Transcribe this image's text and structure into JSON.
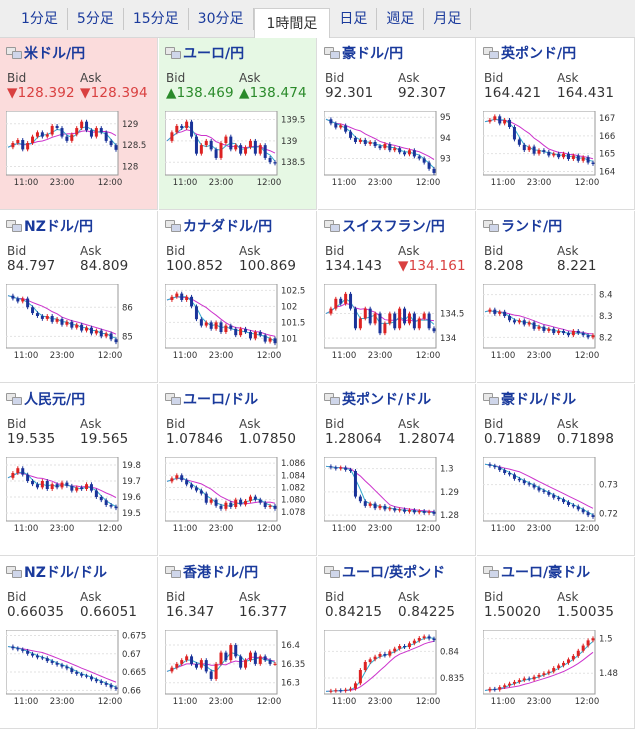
{
  "tabs": [
    "1分足",
    "5分足",
    "15分足",
    "30分足",
    "1時間足",
    "日足",
    "週足",
    "月足"
  ],
  "active_tab_index": 4,
  "labels": {
    "bid": "Bid",
    "ask": "Ask"
  },
  "colors": {
    "link": "#1a3a9c",
    "down_bg": "#fbdcdc",
    "up_bg": "#e6f8e4",
    "ma_long": "#cc33cc",
    "ma_short": "#33aacc",
    "candle_up": "#dd2222",
    "candle_down": "#1a3399"
  },
  "pairs": [
    {
      "name": "米ドル/円",
      "bid": "▼128.392",
      "ask": "▼128.394",
      "state": "down",
      "bid_color": "red",
      "ask_color": "red",
      "flags": [
        "#ffffff",
        "#ffffff"
      ],
      "chart_data": {
        "type": "line",
        "x_ticks": [
          "11:00",
          "23:00",
          "12:00"
        ],
        "y_ticks": [
          "129",
          "128.5",
          "128"
        ],
        "ylim": [
          127.8,
          129.3
        ],
        "path": [
          128.45,
          128.55,
          128.62,
          128.4,
          128.55,
          128.7,
          128.8,
          128.7,
          128.75,
          128.95,
          128.9,
          128.7,
          128.6,
          128.75,
          128.9,
          129.05,
          128.85,
          128.7,
          128.9,
          128.8,
          128.6,
          128.5,
          128.39
        ]
      }
    },
    {
      "name": "ユーロ/円",
      "bid": "▲138.469",
      "ask": "▲138.474",
      "state": "up",
      "bid_color": "green",
      "ask_color": "green",
      "flags": [
        "#ffffff",
        "#ffffff"
      ],
      "chart_data": {
        "type": "line",
        "x_ticks": [
          "11:00",
          "23:00",
          "12:00"
        ],
        "y_ticks": [
          "139.5",
          "139",
          "138.5"
        ],
        "ylim": [
          138.2,
          139.7
        ],
        "path": [
          139.0,
          139.2,
          139.35,
          139.3,
          139.45,
          139.1,
          138.7,
          138.9,
          139.0,
          138.8,
          138.6,
          138.95,
          139.1,
          138.8,
          138.9,
          138.7,
          138.85,
          139.0,
          138.7,
          138.9,
          138.6,
          138.5,
          138.47
        ]
      }
    },
    {
      "name": "豪ドル/円",
      "bid": "92.301",
      "ask": "92.307",
      "state": "normal",
      "bid_color": "normal",
      "ask_color": "normal",
      "flags": [
        "#ffffff",
        "#ffffff"
      ],
      "chart_data": {
        "type": "line",
        "x_ticks": [
          "11:00",
          "23:00",
          "12:00"
        ],
        "y_ticks": [
          "95",
          "94",
          "93"
        ],
        "ylim": [
          92.2,
          95.3
        ],
        "path": [
          94.9,
          94.7,
          94.5,
          94.6,
          94.3,
          94.0,
          93.8,
          93.9,
          93.7,
          93.8,
          93.6,
          93.5,
          93.7,
          93.4,
          93.5,
          93.3,
          93.2,
          93.4,
          93.1,
          93.0,
          92.8,
          92.5,
          92.3
        ]
      }
    },
    {
      "name": "英ポンド/円",
      "bid": "164.421",
      "ask": "164.431",
      "state": "normal",
      "bid_color": "normal",
      "ask_color": "normal",
      "flags": [
        "#ffffff",
        "#ffffff"
      ],
      "chart_data": {
        "type": "line",
        "x_ticks": [
          "11:00",
          "23:00",
          "12:00"
        ],
        "y_ticks": [
          "167",
          "166",
          "165",
          "164"
        ],
        "ylim": [
          163.8,
          167.4
        ],
        "path": [
          166.8,
          166.9,
          167.1,
          166.7,
          166.9,
          166.5,
          165.8,
          165.5,
          165.2,
          165.4,
          165.0,
          165.2,
          165.1,
          164.9,
          165.0,
          164.8,
          165.0,
          164.7,
          164.9,
          164.6,
          164.8,
          164.5,
          164.42
        ]
      }
    },
    {
      "name": "NZドル/円",
      "bid": "84.797",
      "ask": "84.809",
      "state": "normal",
      "bid_color": "normal",
      "ask_color": "normal",
      "flags": [
        "#ffffff",
        "#ffffff"
      ],
      "chart_data": {
        "type": "line",
        "x_ticks": [
          "11:00",
          "23:00",
          "12:00"
        ],
        "y_ticks": [
          "86",
          "85"
        ],
        "ylim": [
          84.6,
          86.8
        ],
        "path": [
          86.4,
          86.3,
          86.2,
          86.3,
          86.0,
          85.8,
          85.7,
          85.6,
          85.7,
          85.5,
          85.6,
          85.4,
          85.5,
          85.3,
          85.4,
          85.2,
          85.3,
          85.1,
          85.2,
          85.0,
          85.1,
          84.9,
          84.8
        ]
      }
    },
    {
      "name": "カナダドル/円",
      "bid": "100.852",
      "ask": "100.869",
      "state": "normal",
      "bid_color": "normal",
      "ask_color": "normal",
      "flags": [
        "#ffffff",
        "#ffffff"
      ],
      "chart_data": {
        "type": "line",
        "x_ticks": [
          "11:00",
          "23:00",
          "12:00"
        ],
        "y_ticks": [
          "102.5",
          "102",
          "101.5",
          "101"
        ],
        "ylim": [
          100.7,
          102.7
        ],
        "path": [
          102.2,
          102.3,
          102.4,
          102.2,
          102.3,
          102.0,
          101.6,
          101.4,
          101.5,
          101.3,
          101.5,
          101.2,
          101.4,
          101.3,
          101.1,
          101.3,
          101.2,
          101.0,
          101.2,
          101.1,
          100.9,
          101.0,
          100.85
        ]
      }
    },
    {
      "name": "スイスフラン/円",
      "bid": "134.143",
      "ask": "▼134.161",
      "state": "normal",
      "bid_color": "normal",
      "ask_color": "red",
      "flags": [
        "#ffffff",
        "#ffffff"
      ],
      "chart_data": {
        "type": "line",
        "x_ticks": [
          "11:00",
          "23:00",
          "12:00"
        ],
        "y_ticks": [
          "134.5",
          "134"
        ],
        "ylim": [
          133.8,
          135.1
        ],
        "path": [
          134.5,
          134.6,
          134.8,
          134.7,
          134.9,
          134.6,
          134.2,
          134.4,
          134.6,
          134.3,
          134.5,
          134.1,
          134.3,
          134.5,
          134.2,
          134.6,
          134.3,
          134.5,
          134.2,
          134.4,
          134.5,
          134.2,
          134.14
        ]
      }
    },
    {
      "name": "ランド/円",
      "bid": "8.208",
      "ask": "8.221",
      "state": "normal",
      "bid_color": "normal",
      "ask_color": "normal",
      "flags": [
        "#ffffff",
        "#ffffff"
      ],
      "chart_data": {
        "type": "line",
        "x_ticks": [
          "11:00",
          "23:00",
          "12:00"
        ],
        "y_ticks": [
          "8.4",
          "8.3",
          "8.2"
        ],
        "ylim": [
          8.15,
          8.45
        ],
        "path": [
          8.32,
          8.33,
          8.31,
          8.32,
          8.3,
          8.28,
          8.27,
          8.28,
          8.26,
          8.27,
          8.24,
          8.25,
          8.23,
          8.24,
          8.22,
          8.23,
          8.22,
          8.21,
          8.23,
          8.22,
          8.21,
          8.2,
          8.21
        ]
      }
    },
    {
      "name": "人民元/円",
      "bid": "19.535",
      "ask": "19.565",
      "state": "normal",
      "bid_color": "normal",
      "ask_color": "normal",
      "flags": [
        "#ffffff",
        "#ffffff"
      ],
      "chart_data": {
        "type": "line",
        "x_ticks": [
          "11:00",
          "23:00",
          "12:00"
        ],
        "y_ticks": [
          "19.8",
          "19.7",
          "19.6",
          "19.5"
        ],
        "ylim": [
          19.45,
          19.85
        ],
        "path": [
          19.72,
          19.75,
          19.78,
          19.74,
          19.7,
          19.68,
          19.66,
          19.7,
          19.65,
          19.68,
          19.66,
          19.69,
          19.67,
          19.64,
          19.66,
          19.65,
          19.68,
          19.64,
          19.6,
          19.58,
          19.55,
          19.54,
          19.53
        ]
      }
    },
    {
      "name": "ユーロ/ドル",
      "bid": "1.07846",
      "ask": "1.07850",
      "state": "normal",
      "bid_color": "normal",
      "ask_color": "normal",
      "flags": [
        "#ffffff",
        "#ffffff"
      ],
      "chart_data": {
        "type": "line",
        "x_ticks": [
          "11:00",
          "23:00",
          "12:00"
        ],
        "y_ticks": [
          "1.086",
          "1.084",
          "1.082",
          "1.080",
          "1.078"
        ],
        "ylim": [
          1.0765,
          1.087
        ],
        "path": [
          1.083,
          1.0835,
          1.084,
          1.0832,
          1.0825,
          1.082,
          1.0815,
          1.081,
          1.0795,
          1.08,
          1.079,
          1.0785,
          1.0795,
          1.0788,
          1.08,
          1.0792,
          1.0798,
          1.0805,
          1.08,
          1.0795,
          1.0788,
          1.079,
          1.0785
        ]
      }
    },
    {
      "name": "英ポンド/ドル",
      "bid": "1.28064",
      "ask": "1.28074",
      "state": "normal",
      "bid_color": "normal",
      "ask_color": "normal",
      "flags": [
        "#ffffff",
        "#ffffff"
      ],
      "chart_data": {
        "type": "line",
        "x_ticks": [
          "11:00",
          "23:00",
          "12:00"
        ],
        "y_ticks": [
          "1.3",
          "1.29",
          "1.28"
        ],
        "ylim": [
          1.2775,
          1.305
        ],
        "path": [
          1.301,
          1.3005,
          1.3,
          1.3005,
          1.2995,
          1.299,
          1.288,
          1.286,
          1.284,
          1.285,
          1.283,
          1.284,
          1.2825,
          1.283,
          1.282,
          1.2825,
          1.2815,
          1.2822,
          1.2812,
          1.2818,
          1.281,
          1.2815,
          1.2806
        ]
      }
    },
    {
      "name": "豪ドル/ドル",
      "bid": "0.71889",
      "ask": "0.71898",
      "state": "normal",
      "bid_color": "normal",
      "ask_color": "normal",
      "flags": [
        "#ffffff",
        "#ffffff"
      ],
      "chart_data": {
        "type": "line",
        "x_ticks": [
          "11:00",
          "23:00",
          "12:00"
        ],
        "y_ticks": [
          "0.73",
          "0.72"
        ],
        "ylim": [
          0.7175,
          0.7395
        ],
        "path": [
          0.737,
          0.7365,
          0.736,
          0.735,
          0.734,
          0.7335,
          0.732,
          0.7315,
          0.7305,
          0.73,
          0.729,
          0.728,
          0.7275,
          0.7265,
          0.7255,
          0.725,
          0.724,
          0.723,
          0.7225,
          0.7215,
          0.7205,
          0.7195,
          0.7189
        ]
      }
    },
    {
      "name": "NZドル/ドル",
      "bid": "0.66035",
      "ask": "0.66051",
      "state": "normal",
      "bid_color": "normal",
      "ask_color": "normal",
      "flags": [
        "#ffffff",
        "#ffffff"
      ],
      "chart_data": {
        "type": "line",
        "x_ticks": [
          "11:00",
          "23:00",
          "12:00"
        ],
        "y_ticks": [
          "0.675",
          "0.67",
          "0.665",
          "0.66"
        ],
        "ylim": [
          0.659,
          0.6765
        ],
        "path": [
          0.672,
          0.6715,
          0.6712,
          0.6708,
          0.67,
          0.6695,
          0.669,
          0.6688,
          0.668,
          0.6675,
          0.667,
          0.6665,
          0.666,
          0.665,
          0.6645,
          0.664,
          0.6638,
          0.663,
          0.6625,
          0.662,
          0.6615,
          0.6608,
          0.6604
        ]
      }
    },
    {
      "name": "香港ドル/円",
      "bid": "16.347",
      "ask": "16.377",
      "state": "normal",
      "bid_color": "normal",
      "ask_color": "normal",
      "flags": [
        "#ffffff",
        "#ffffff"
      ],
      "chart_data": {
        "type": "line",
        "x_ticks": [
          "11:00",
          "23:00",
          "12:00"
        ],
        "y_ticks": [
          "16.4",
          "16.35",
          "16.3"
        ],
        "ylim": [
          16.27,
          16.44
        ],
        "path": [
          16.33,
          16.34,
          16.35,
          16.36,
          16.37,
          16.35,
          16.34,
          16.36,
          16.33,
          16.31,
          16.35,
          16.38,
          16.36,
          16.4,
          16.37,
          16.34,
          16.36,
          16.38,
          16.35,
          16.37,
          16.36,
          16.35,
          16.35
        ]
      }
    },
    {
      "name": "ユーロ/英ポンド",
      "bid": "0.84215",
      "ask": "0.84225",
      "state": "normal",
      "bid_color": "normal",
      "ask_color": "normal",
      "flags": [
        "#ffffff",
        "#ffffff"
      ],
      "chart_data": {
        "type": "line",
        "x_ticks": [
          "11:00",
          "23:00",
          "12:00"
        ],
        "y_ticks": [
          "0.84",
          "0.835"
        ],
        "ylim": [
          0.832,
          0.844
        ],
        "path": [
          0.8325,
          0.8326,
          0.8327,
          0.8326,
          0.8328,
          0.833,
          0.834,
          0.8365,
          0.838,
          0.8385,
          0.839,
          0.8395,
          0.8392,
          0.84,
          0.8405,
          0.841,
          0.8408,
          0.8415,
          0.842,
          0.8425,
          0.8428,
          0.8424,
          0.8421
        ]
      }
    },
    {
      "name": "ユーロ/豪ドル",
      "bid": "1.50020",
      "ask": "1.50035",
      "state": "normal",
      "bid_color": "normal",
      "ask_color": "normal",
      "flags": [
        "#ffffff",
        "#ffffff"
      ],
      "chart_data": {
        "type": "line",
        "x_ticks": [
          "11:00",
          "23:00",
          "12:00"
        ],
        "y_ticks": [
          "1.5",
          "1.48"
        ],
        "ylim": [
          1.468,
          1.505
        ],
        "path": [
          1.47,
          1.471,
          1.4705,
          1.472,
          1.473,
          1.474,
          1.475,
          1.476,
          1.477,
          1.4765,
          1.478,
          1.479,
          1.48,
          1.481,
          1.483,
          1.4845,
          1.486,
          1.488,
          1.49,
          1.493,
          1.496,
          1.499,
          1.5002
        ]
      }
    }
  ]
}
